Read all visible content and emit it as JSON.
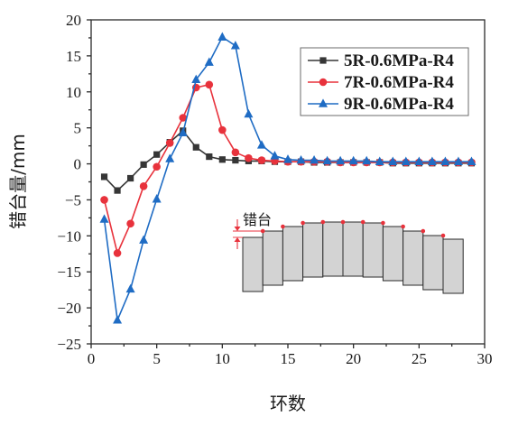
{
  "chart_data": {
    "type": "line",
    "xlabel": "环数",
    "ylabel": "错台量/mm",
    "xlim": [
      0,
      30
    ],
    "ylim": [
      -25,
      20
    ],
    "xticks": [
      "0",
      "5",
      "10",
      "15",
      "20",
      "25",
      "30"
    ],
    "yticks": [
      "20",
      "15",
      "10",
      "5",
      "0",
      "−5",
      "−10",
      "−15",
      "−20",
      "−25"
    ],
    "grid": false,
    "legend": "top-right",
    "x": [
      1,
      2,
      3,
      4,
      5,
      6,
      7,
      8,
      9,
      10,
      11,
      12,
      13,
      14,
      15,
      16,
      17,
      18,
      19,
      20,
      21,
      22,
      23,
      24,
      25,
      26,
      27,
      28,
      29
    ],
    "series": [
      {
        "name": "5R-0.6MPa-R4",
        "color": "#363636",
        "marker": "square",
        "values": [
          -1.8,
          -3.7,
          -2.0,
          -0.1,
          1.3,
          3.0,
          4.6,
          2.3,
          1.0,
          0.6,
          0.5,
          0.4,
          0.4,
          0.3,
          0.3,
          0.3,
          0.2,
          0.2,
          0.2,
          0.2,
          0.2,
          0.2,
          0.1,
          0.1,
          0.1,
          0.1,
          0.1,
          0.1,
          0.1
        ]
      },
      {
        "name": "7R-0.6MPa-R4",
        "color": "#e8323c",
        "marker": "circle",
        "values": [
          -5.0,
          -12.4,
          -8.3,
          -3.1,
          -0.4,
          2.9,
          6.4,
          10.6,
          11.0,
          4.7,
          1.6,
          0.8,
          0.5,
          0.4,
          0.3,
          0.3,
          0.3,
          0.3,
          0.2,
          0.2,
          0.2,
          0.2,
          0.2,
          0.2,
          0.2,
          0.2,
          0.2,
          0.2,
          0.2
        ]
      },
      {
        "name": "9R-0.6MPa-R4",
        "color": "#1f6cc4",
        "marker": "triangle",
        "values": [
          -7.7,
          -21.7,
          -17.4,
          -10.6,
          -4.9,
          0.7,
          4.3,
          11.7,
          14.1,
          17.6,
          16.4,
          6.9,
          2.6,
          1.1,
          0.6,
          0.5,
          0.5,
          0.4,
          0.4,
          0.4,
          0.4,
          0.3,
          0.3,
          0.3,
          0.3,
          0.3,
          0.3,
          0.3,
          0.3
        ]
      }
    ],
    "annotations": [
      {
        "text": "错台",
        "color": "#e8323c"
      }
    ]
  }
}
